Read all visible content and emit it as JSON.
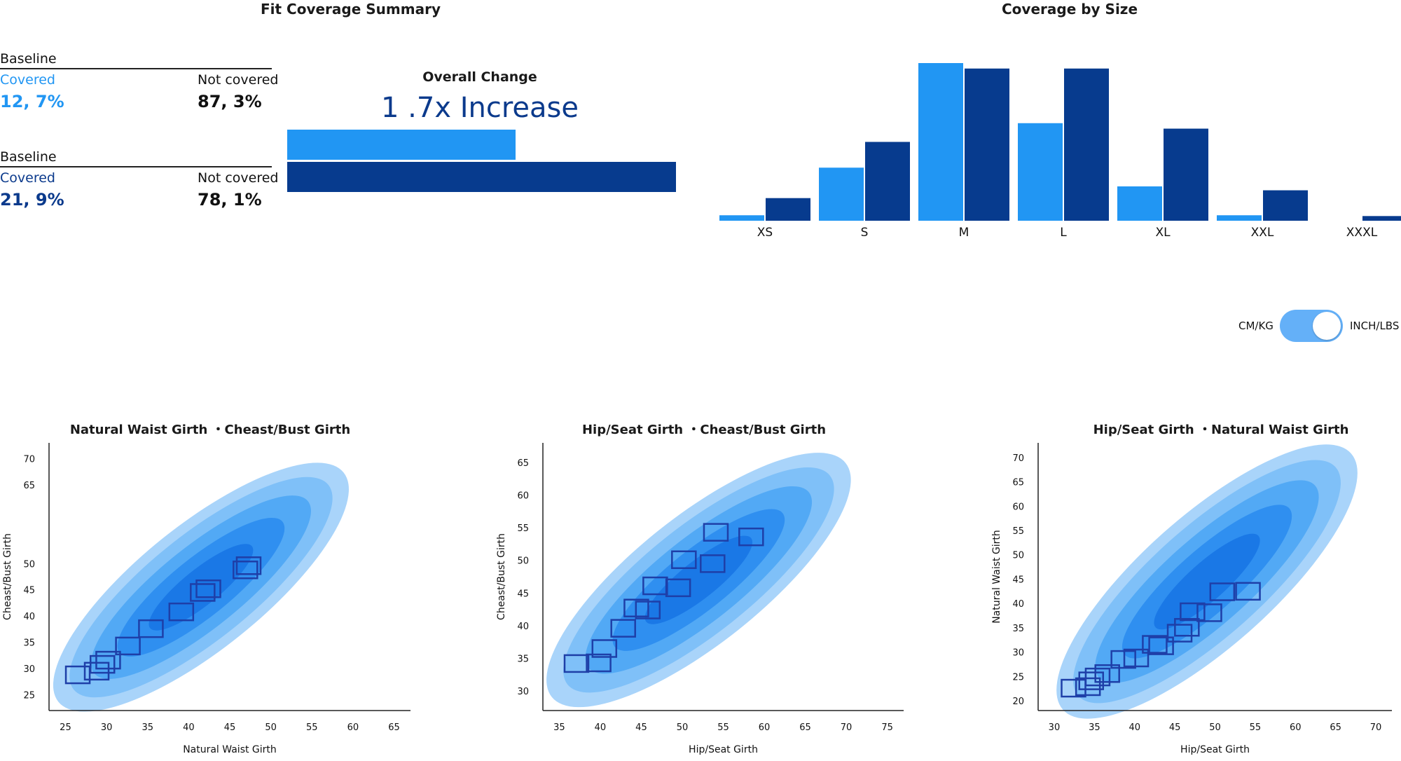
{
  "summary": {
    "title": "Fit Coverage Summary",
    "rows": [
      {
        "baseline_label": "Baseline",
        "covered_label": "Covered",
        "covered_value": "12, 7%",
        "not_covered_label": "Not covered",
        "not_covered_value": "87, 3%",
        "color": "#2196f3"
      },
      {
        "baseline_label": "Baseline",
        "covered_label": "Covered",
        "covered_value": "21, 9%",
        "not_covered_label": "Not covered",
        "not_covered_value": "78, 1%",
        "color": "#0b3a8c"
      }
    ],
    "overall_title": "Overall Change",
    "overall_value": "1 .7x Increase",
    "overall_bars": [
      1.0,
      1.7
    ]
  },
  "colors": {
    "light": "#2196f3",
    "dark": "#073b8e"
  },
  "toggle": {
    "left_label": "CM/KG",
    "right_label": "INCH/LBS",
    "state": "INCH/LBS"
  },
  "chart_data": [
    {
      "type": "bar",
      "title": "Coverage by Size",
      "categories": [
        "XS",
        "S",
        "M",
        "L",
        "XL",
        "XXL",
        "XXXL"
      ],
      "series": [
        {
          "values": [
            0.7,
            6.8,
            20.2,
            12.5,
            4.4,
            0.7,
            0
          ]
        },
        {
          "values": [
            2.9,
            10.1,
            19.5,
            19.5,
            11.8,
            3.9,
            0.6
          ]
        }
      ],
      "ylim": [
        0,
        20.2
      ],
      "legend": "none"
    },
    {
      "type": "scatter",
      "title": "Natural Waist Girth ・Cheast/Bust Girth",
      "xlabel": "Natural Waist Girth",
      "ylabel": "Cheast/Bust Girth",
      "xticks": [
        "25",
        "30",
        "35",
        "40",
        "45",
        "50",
        "55",
        "60",
        "65"
      ],
      "yticks": [
        "25",
        "30",
        "35",
        "40",
        "45",
        "50",
        "65",
        "70"
      ],
      "xlim": [
        23,
        67
      ],
      "ylim": [
        22,
        73
      ],
      "cloud": {
        "x0": 26,
        "y0": 26,
        "x1": 57,
        "y1": 65
      },
      "series": [
        {
          "x": [
            26.5,
            28.8,
            29.5,
            30.2,
            32.6,
            35.4,
            39.1,
            41.7,
            42.4,
            46.9,
            47.3
          ],
          "y": [
            28.8,
            29.5,
            30.8,
            31.6,
            34.3,
            37.6,
            40.8,
            44.5,
            45.2,
            48.8,
            49.6
          ]
        }
      ]
    },
    {
      "type": "scatter",
      "title": "Hip/Seat Girth ・Cheast/Bust Girth",
      "xlabel": "Hip/Seat Girth",
      "ylabel": "Cheast/Bust Girth",
      "xticks": [
        "35",
        "40",
        "45",
        "50",
        "55",
        "60",
        "65",
        "70",
        "75"
      ],
      "yticks": [
        "30",
        "35",
        "40",
        "45",
        "50",
        "55",
        "60",
        "65"
      ],
      "xlim": [
        33,
        77
      ],
      "ylim": [
        27,
        68
      ],
      "cloud": {
        "x0": 36,
        "y0": 31,
        "x1": 68,
        "y1": 63
      },
      "series": [
        {
          "x": [
            37.1,
            39.8,
            40.5,
            42.8,
            44.4,
            45.8,
            46.7,
            49.5,
            50.2,
            53.7,
            54.1,
            58.4
          ],
          "y": [
            34.2,
            34.3,
            36.5,
            39.6,
            42.7,
            42.4,
            46.1,
            45.8,
            50.1,
            49.5,
            54.3,
            53.6
          ]
        }
      ]
    },
    {
      "type": "scatter",
      "title": "Hip/Seat Girth ・Natural Waist Girth",
      "xlabel": "Hip/Seat Girth",
      "ylabel": "Natural Waist Girth",
      "xticks": [
        "30",
        "35",
        "40",
        "45",
        "50",
        "55",
        "60",
        "65",
        "70"
      ],
      "yticks": [
        "20",
        "25",
        "30",
        "35",
        "40",
        "45",
        "50",
        "55",
        "60",
        "65",
        "70"
      ],
      "xlim": [
        28,
        72
      ],
      "ylim": [
        18,
        73
      ],
      "cloud": {
        "x0": 33,
        "y0": 21,
        "x1": 65,
        "y1": 68
      },
      "series": [
        {
          "x": [
            32.4,
            34.2,
            34.6,
            35.4,
            36.6,
            38.6,
            40.2,
            42.5,
            43.3,
            45.6,
            46.5,
            47.2,
            49.3,
            50.9,
            54.1
          ],
          "y": [
            22.6,
            22.9,
            24.1,
            24.9,
            25.6,
            28.5,
            28.8,
            31.6,
            31.3,
            33.9,
            35.1,
            38.3,
            38.1,
            42.4,
            42.5
          ]
        }
      ]
    }
  ]
}
